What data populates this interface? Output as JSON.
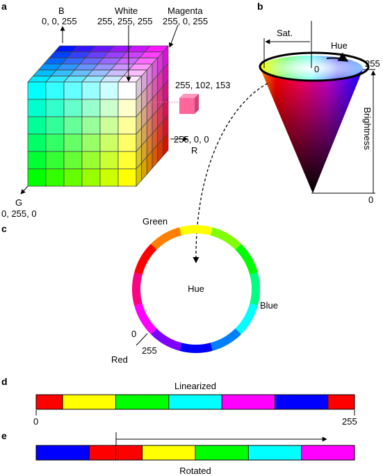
{
  "panels": {
    "a": "a",
    "b": "b",
    "c": "c",
    "d": "d",
    "e": "e"
  },
  "cube": {
    "b_axis": "B",
    "b_value": "0, 0, 255",
    "white_label": "White",
    "white_value": "255, 255, 255",
    "magenta_label": "Magenta",
    "magenta_value": "255, 0, 255",
    "sample_value": "255, 102, 153",
    "sample_color": "#ff6699",
    "r_value": "255, 0, 0",
    "r_axis": "R",
    "g_axis": "G",
    "g_value": "0, 255, 0"
  },
  "cone": {
    "sat_label": "Sat.",
    "hue_label": "Hue",
    "center_value": "0",
    "max_value": "255",
    "brightness_label": "Brightness",
    "min_value": "0"
  },
  "wheel": {
    "center_label": "Hue",
    "green_label": "Green",
    "blue_label": "Blue",
    "red_label": "Red",
    "zero_value": "0",
    "max_value": "255",
    "segments": [
      "#ff0000",
      "#ff8000",
      "#ffff00",
      "#80ff00",
      "#00ff00",
      "#00ff80",
      "#00ffff",
      "#0080ff",
      "#0000ff",
      "#8000ff",
      "#ff00ff",
      "#ff0080"
    ]
  },
  "linear": {
    "title": "Linearized",
    "start_value": "0",
    "end_value": "255",
    "colors": [
      "#ff0000",
      "#ffff00",
      "#00ff00",
      "#00ffff",
      "#ff00ff",
      "#0000ff",
      "#ff0000"
    ]
  },
  "rotated": {
    "title": "Rotated",
    "colors": [
      "#0000ff",
      "#ff0000",
      "#ff0000",
      "#ffff00",
      "#00ff00",
      "#00ffff",
      "#ff00ff"
    ]
  }
}
